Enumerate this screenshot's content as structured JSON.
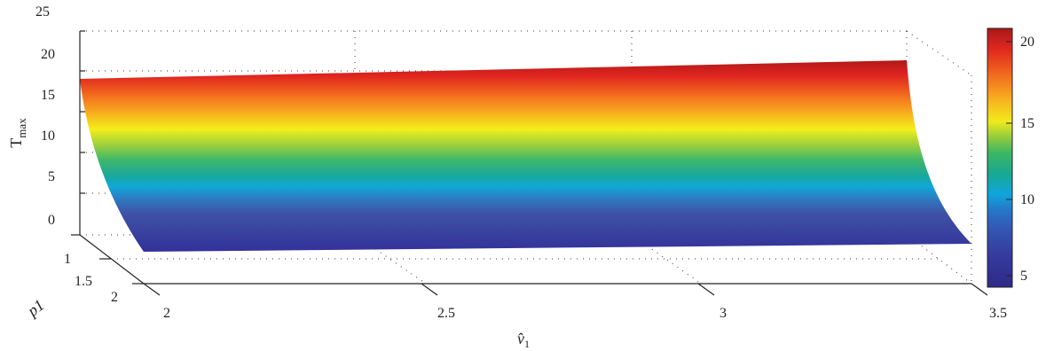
{
  "chart_data": {
    "type": "surface",
    "title": "",
    "xlabel": "v̂",
    "xlabel_sub": "1",
    "ylabel": "p1",
    "zlabel": "T",
    "zlabel_sub": "max",
    "x_ticks": [
      "2",
      "2.5",
      "3",
      "3.5"
    ],
    "x_tick_values": [
      2,
      2.5,
      3,
      3.5
    ],
    "y_ticks": [
      "1",
      "1.5",
      "2"
    ],
    "y_tick_values": [
      1,
      1.5,
      2
    ],
    "z_ticks": [
      "0",
      "5",
      "10",
      "15",
      "20",
      "25"
    ],
    "z_tick_values": [
      0,
      5,
      10,
      15,
      20,
      25
    ],
    "xlim": [
      2,
      3.5
    ],
    "ylim": [
      1,
      2
    ],
    "zlim": [
      0,
      25
    ],
    "grid": true,
    "colormap": "jet",
    "colorbar": {
      "ticks": [
        "5",
        "10",
        "15",
        "20"
      ],
      "tick_values": [
        5,
        10,
        15,
        20
      ],
      "range": [
        4,
        21
      ]
    },
    "surface_summary": {
      "z_at_p1_1_v_2": 17.8,
      "z_at_p1_1_v_3.5": 20.5,
      "z_at_p1_2": 4
    }
  }
}
